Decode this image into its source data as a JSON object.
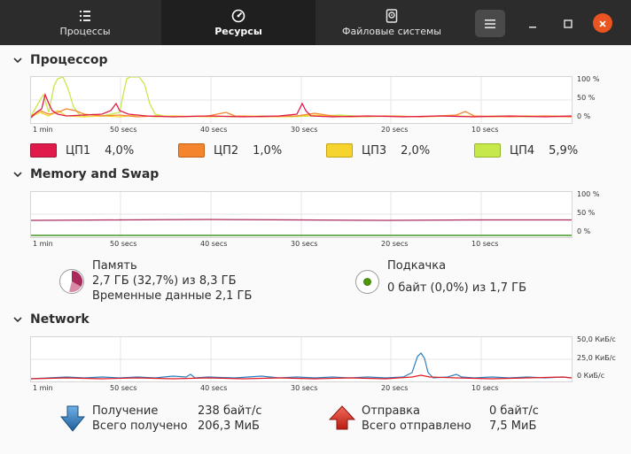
{
  "tabs": [
    {
      "label": "Процессы",
      "icon": "list-icon"
    },
    {
      "label": "Ресурсы",
      "icon": "gauge-icon",
      "active": true
    },
    {
      "label": "Файловые системы",
      "icon": "disk-icon"
    }
  ],
  "cpu": {
    "title": "Процессор",
    "y_labels": [
      "100 %",
      "50 %",
      "0 %"
    ],
    "x_labels": [
      "1 min",
      "50 secs",
      "40 secs",
      "30 secs",
      "20 secs",
      "10 secs"
    ],
    "legend": [
      {
        "name": "ЦП1",
        "value": "4,0%",
        "color": "#e01b4c"
      },
      {
        "name": "ЦП2",
        "value": "1,0%",
        "color": "#f5842e"
      },
      {
        "name": "ЦП3",
        "value": "2,0%",
        "color": "#f6d32d"
      },
      {
        "name": "ЦП4",
        "value": "5,9%",
        "color": "#c6e84a"
      }
    ]
  },
  "memory": {
    "title": "Memory and Swap",
    "y_labels": [
      "100 %",
      "50 %",
      "0 %"
    ],
    "x_labels": [
      "1 min",
      "50 secs",
      "40 secs",
      "30 secs",
      "20 secs",
      "10 secs"
    ],
    "mem_label": "Память",
    "mem_value": "2,7 ГБ (32,7%) из 8,3 ГБ",
    "mem_cache": "Временные данные 2,1 ГБ",
    "mem_color": "#ab2a5e",
    "swap_label": "Подкачка",
    "swap_value": "0 байт (0,0%) из 1,7 ГБ",
    "swap_color": "#4e9a06"
  },
  "network": {
    "title": "Network",
    "y_labels": [
      "50,0 КиБ/с",
      "25,0 КиБ/с",
      "0 КиБ/с"
    ],
    "x_labels": [
      "1 min",
      "50 secs",
      "40 secs",
      "30 secs",
      "20 secs",
      "10 secs"
    ],
    "recv_label": "Получение",
    "recv_rate": "238 байт/с",
    "recv_total_label": "Всего получено",
    "recv_total": "206,3 МиБ",
    "recv_color": "#2a7fc1",
    "send_label": "Отправка",
    "send_rate": "0 байт/с",
    "send_total_label": "Всего отправлено",
    "send_total": "7,5 МиБ",
    "send_color": "#e01b24"
  }
}
